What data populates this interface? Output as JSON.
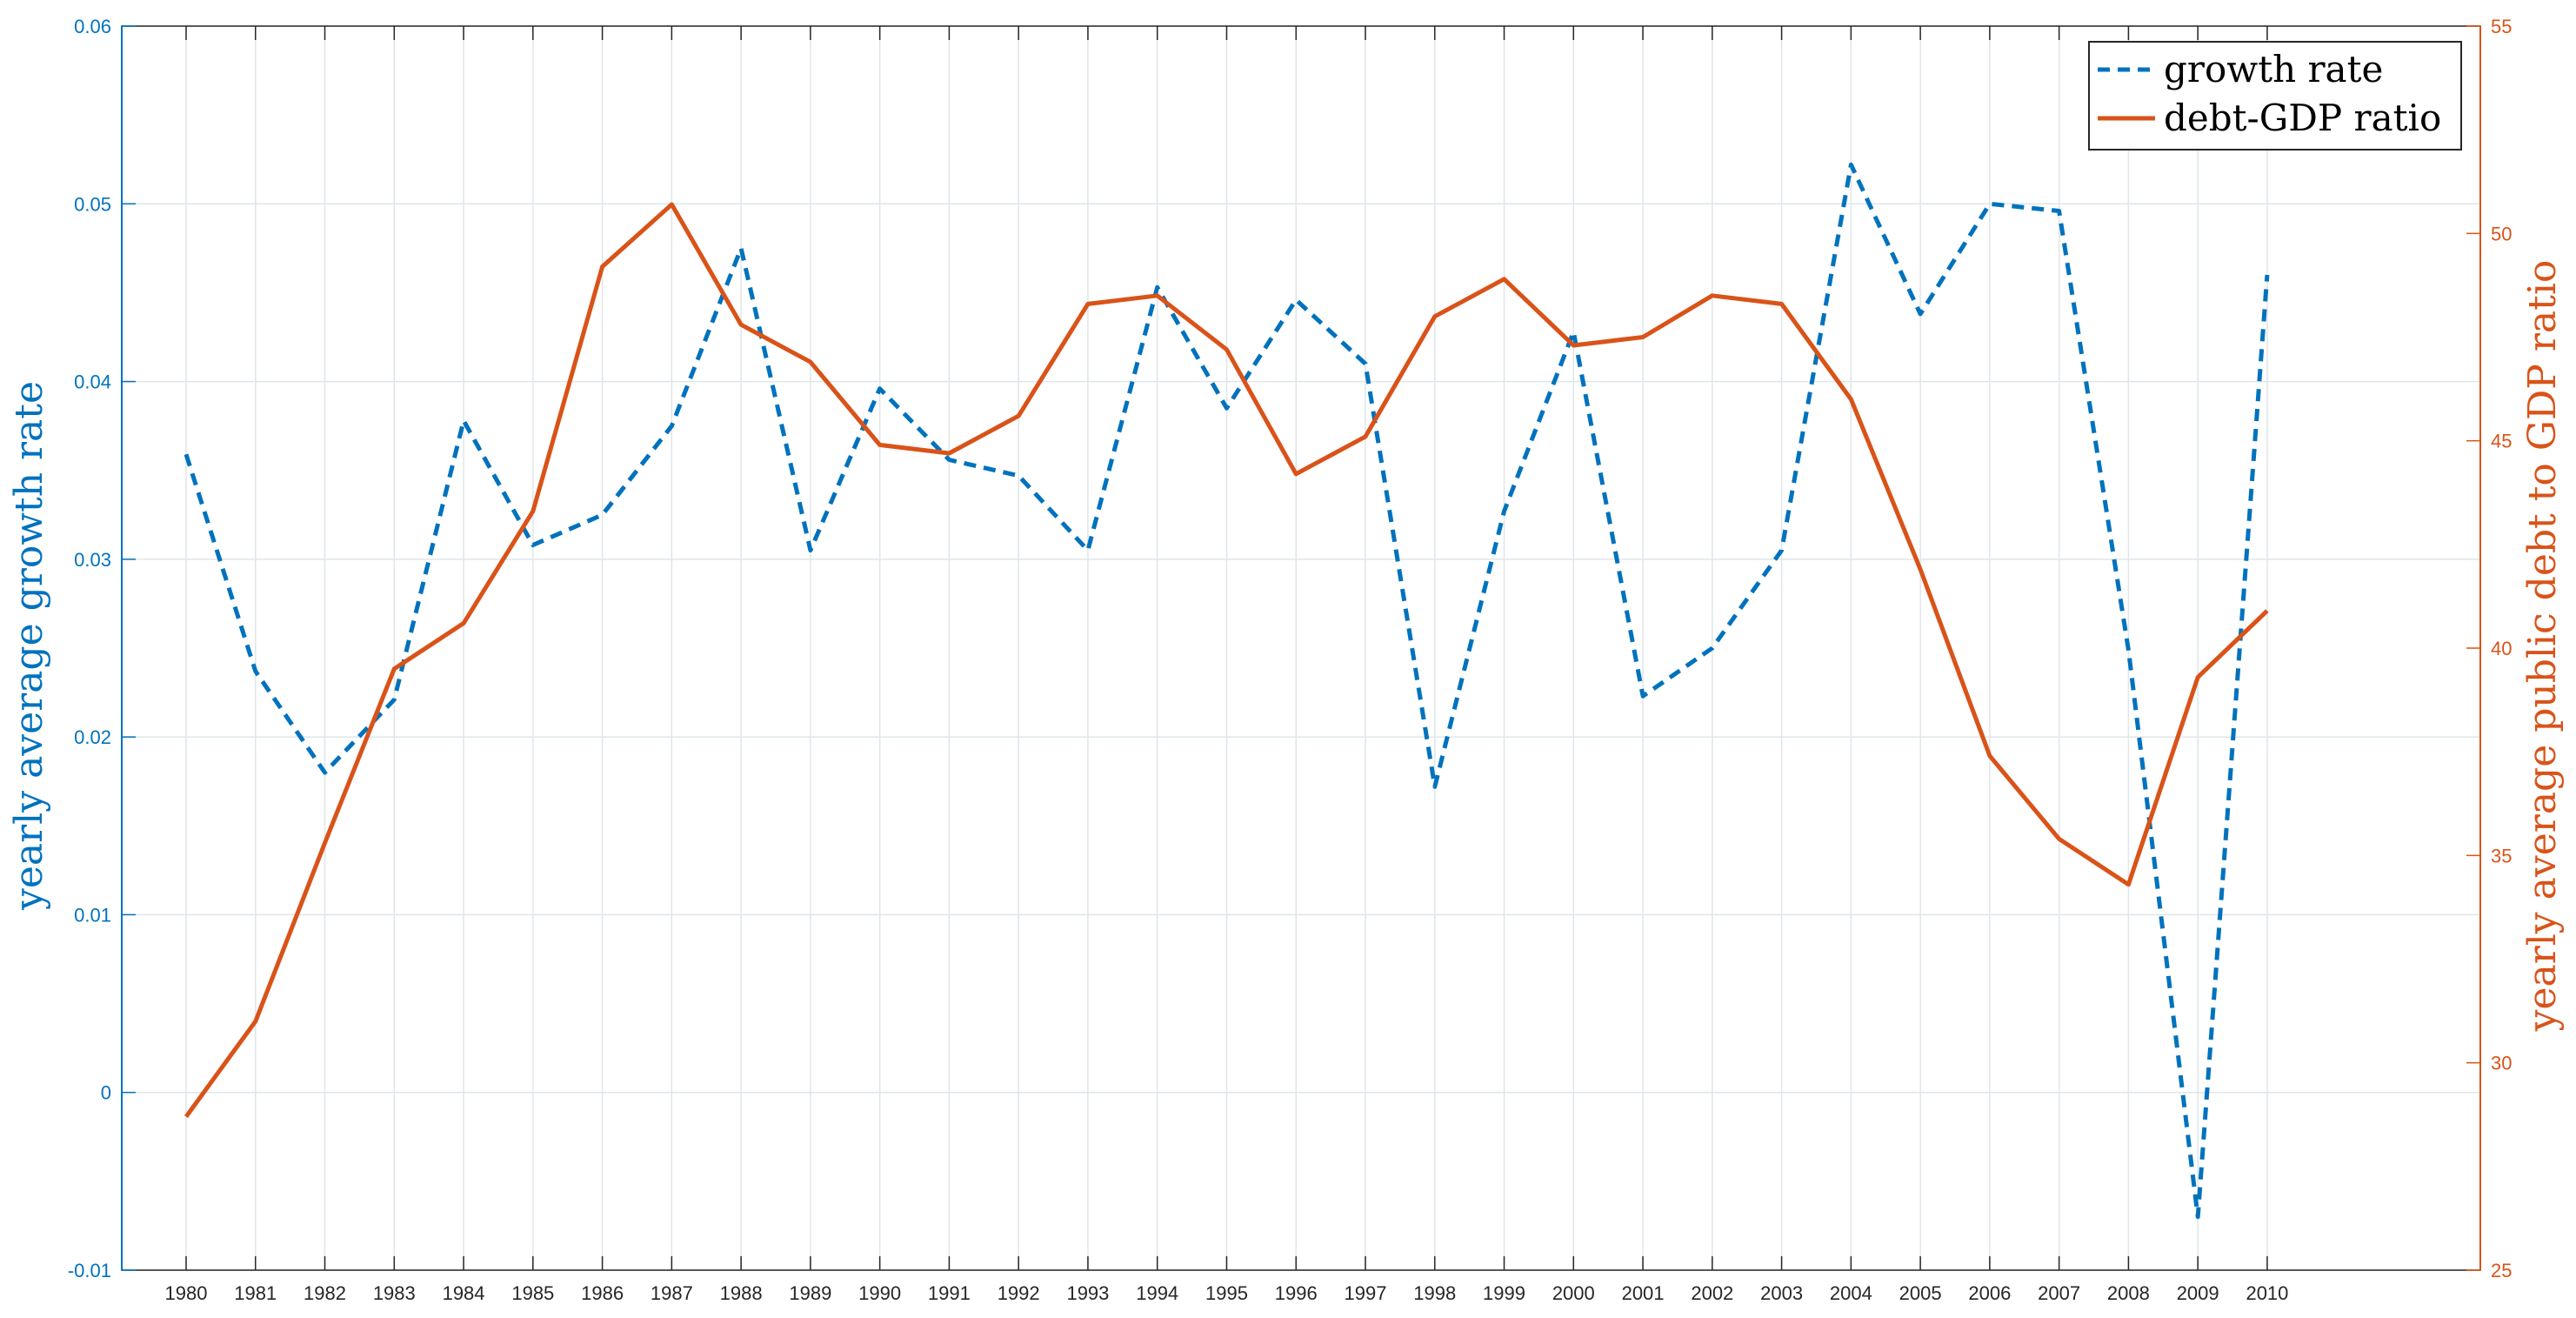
{
  "chart_data": {
    "type": "line",
    "x": [
      1980,
      1981,
      1982,
      1983,
      1984,
      1985,
      1986,
      1987,
      1988,
      1989,
      1990,
      1991,
      1992,
      1993,
      1994,
      1995,
      1996,
      1997,
      1998,
      1999,
      2000,
      2001,
      2002,
      2003,
      2004,
      2005,
      2006,
      2007,
      2008,
      2009,
      2010
    ],
    "x_tick_labels": [
      "1980",
      "1981",
      "1982",
      "1983",
      "1984",
      "1985",
      "1986",
      "1987",
      "1988",
      "1989",
      "1990",
      "1991",
      "1992",
      "1993",
      "1994",
      "1995",
      "1996",
      "1997",
      "1998",
      "1999",
      "2000",
      "2001",
      "2002",
      "2003",
      "2004",
      "2005",
      "2006",
      "2007",
      "2008",
      "2009",
      "2010"
    ],
    "xlim": [
      1980,
      2014
    ],
    "series": [
      {
        "name": "growth rate",
        "axis": "left",
        "style": "dashed",
        "color": "#0072BD",
        "values": [
          0.0359,
          0.0237,
          0.018,
          0.0221,
          0.0378,
          0.0308,
          0.0325,
          0.0375,
          0.0475,
          0.0305,
          0.0396,
          0.0356,
          0.0347,
          0.0305,
          0.0453,
          0.0385,
          0.0446,
          0.041,
          0.0172,
          0.0327,
          0.0428,
          0.0223,
          0.025,
          0.0305,
          0.0522,
          0.0438,
          0.05,
          0.0496,
          0.0249,
          -0.007,
          0.046
        ]
      },
      {
        "name": "debt-GDP ratio",
        "axis": "right",
        "style": "solid",
        "color": "#D95319",
        "values": [
          28.7,
          31.0,
          35.3,
          39.5,
          40.6,
          43.3,
          49.2,
          50.7,
          47.8,
          46.9,
          44.9,
          44.7,
          45.6,
          48.3,
          48.5,
          47.2,
          44.2,
          45.1,
          48.0,
          48.9,
          47.3,
          47.5,
          48.5,
          48.3,
          46.0,
          41.9,
          37.4,
          35.4,
          34.3,
          39.3,
          40.9
        ]
      }
    ],
    "left_axis": {
      "label": "yearly average growth rate",
      "ylim": [
        -0.01,
        0.06
      ],
      "ticks": [
        -0.01,
        0,
        0.01,
        0.02,
        0.03,
        0.04,
        0.05,
        0.06
      ],
      "tick_labels": [
        "-0.01",
        "0",
        "0.01",
        "0.02",
        "0.03",
        "0.04",
        "0.05",
        "0.06"
      ],
      "color": "#0072BD"
    },
    "right_axis": {
      "label": "yearly average public debt to GDP ratio",
      "ylim": [
        25,
        55
      ],
      "ticks": [
        25,
        30,
        35,
        40,
        45,
        50,
        55
      ],
      "tick_labels": [
        "25",
        "30",
        "35",
        "40",
        "45",
        "50",
        "55"
      ],
      "color": "#D95319"
    },
    "grid": true,
    "legend": {
      "position": "top-right",
      "entries": [
        "growth rate",
        "debt-GDP ratio"
      ]
    }
  }
}
